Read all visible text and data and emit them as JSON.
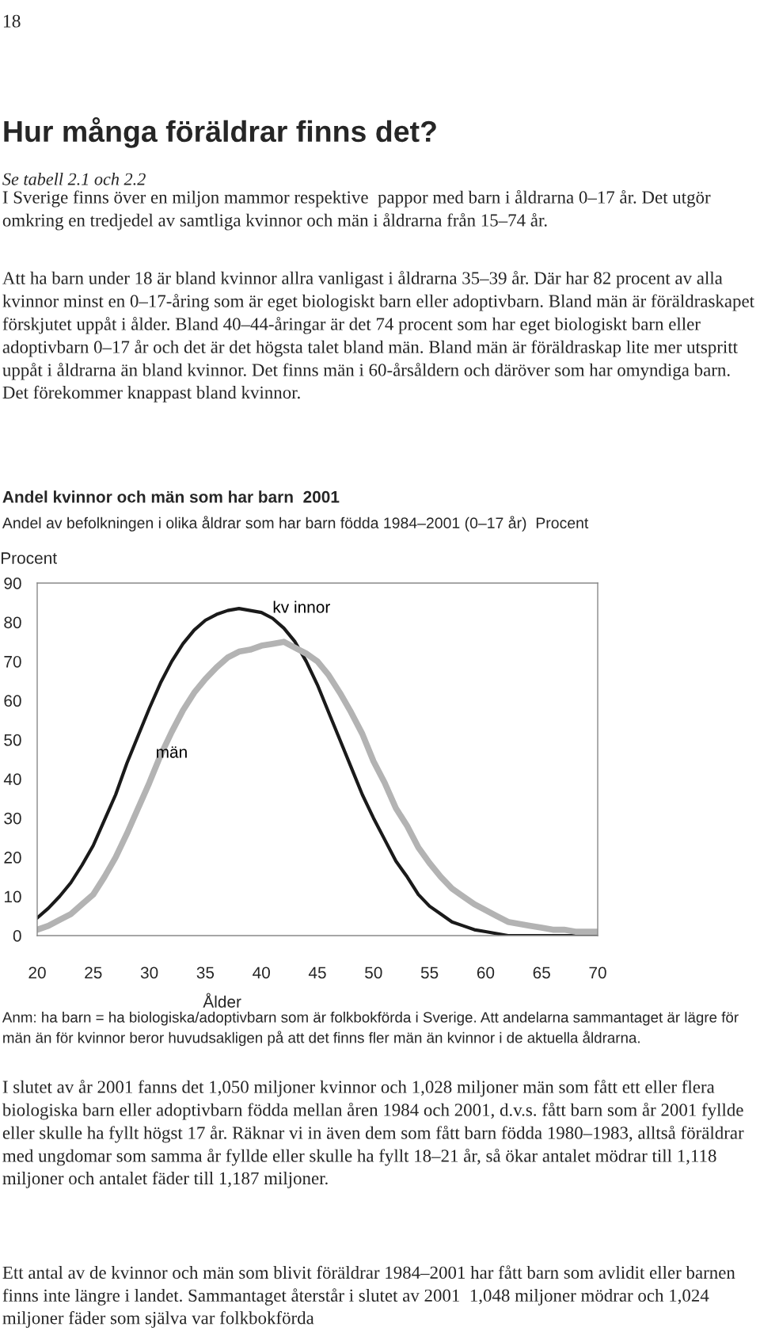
{
  "chart_data": {
    "type": "line",
    "title": "Andel kvinnor och män som har barn  2001",
    "subtitle": "Andel av befolkningen i olika åldrar som har barn födda 1984–2001 (0–17 år)  Procent",
    "ylabel": "Procent",
    "xlabel": "Ålder",
    "annotations": [
      "18",
      "Hur många föräldrar finns det?",
      "Se tabell 2.1 och 2.2",
      "I Sverige finns över en miljon mammor respektive  pappor med barn i åldrarna 0–17 år. Det utgör omkring en tredjedel av samtliga kvinnor och män i åldrarna från 15–74 år.",
      "Att ha barn under 18 är bland kvinnor allra vanligast i åldrarna 35–39 år. Där har 82 procent av alla kvinnor minst en 0–17-åring som är eget biologiskt barn eller adoptivbarn. Bland män är föräldraskapet förskjutet uppåt i ålder. Bland 40–44-åringar är det 74 procent som har eget biologiskt barn eller adoptivbarn 0–17 år och det är det högsta talet bland män. Bland män är föräldraskap lite mer utspritt uppåt i åldrarna än bland kvinnor. Det finns män i 60-årsåldern och däröver som har omyndiga barn. Det förekommer knappast bland kvinnor.",
      "Anm: ha barn = ha biologiska/adoptivbarn som är folkbokförda i Sverige. Att andelarna sammantaget är lägre för män än för kvinnor beror huvudsakligen på att det finns fler män än kvinnor i de aktuella åldrarna.",
      "I slutet av år 2001 fanns det 1,050 miljoner kvinnor och 1,028 miljoner män som fått ett eller flera biologiska barn eller adoptivbarn födda mellan åren 1984 och 2001, d.v.s. fått barn som år 2001 fyllde eller skulle ha fyllt högst 17 år. Räknar vi in även dem som fått barn födda 1980–1983, alltså föräldrar med ungdomar som samma år fyllde eller skulle ha fyllt 18–21 år, så ökar antalet mödrar till 1,118 miljoner och antalet fäder till 1,187 miljoner.",
      "Ett antal av de kvinnor och män som blivit föräldrar 1984–2001 har fått barn som avlidit eller barnen finns inte längre i landet. Sammantaget återstår i slutet av 2001  1,048 miljoner mödrar och 1,024 miljoner fäder som själva var folkbokförda"
    ],
    "x": [
      20,
      21,
      22,
      23,
      24,
      25,
      26,
      27,
      28,
      29,
      30,
      31,
      32,
      33,
      34,
      35,
      36,
      37,
      38,
      39,
      40,
      41,
      42,
      43,
      44,
      45,
      46,
      47,
      48,
      49,
      50,
      51,
      52,
      53,
      54,
      55,
      56,
      57,
      58,
      59,
      60,
      61,
      62,
      63,
      64,
      65,
      66,
      67,
      68,
      69,
      70
    ],
    "series": [
      {
        "name": "kv innor",
        "color": "#1a1a1a",
        "values": [
          4.5,
          7,
          10,
          13.5,
          18,
          23,
          29.5,
          36,
          44,
          51,
          58,
          64.5,
          70,
          74.5,
          78,
          80.5,
          82,
          83,
          83.5,
          83,
          82.5,
          81,
          78.5,
          75,
          70,
          64,
          57,
          50,
          43,
          36,
          30,
          24.5,
          19,
          15,
          10.5,
          7.5,
          5.5,
          3.5,
          2.5,
          1.5,
          1,
          0.5,
          0,
          0,
          0,
          0,
          0,
          0,
          0,
          0,
          0
        ]
      },
      {
        "name": "män",
        "color": "#b3b3b3",
        "values": [
          1.5,
          2.5,
          4,
          5.5,
          8,
          10.5,
          15,
          20,
          26,
          32.5,
          39,
          46,
          52,
          57.5,
          62,
          65.5,
          68.5,
          71,
          72.5,
          73,
          74,
          74.5,
          75,
          73.5,
          72,
          70,
          66.5,
          62,
          57,
          51.5,
          44.5,
          39,
          32.5,
          28,
          22.5,
          18.5,
          15,
          12,
          10,
          8,
          6.5,
          5,
          3.5,
          3,
          2.5,
          2,
          1.5,
          1.5,
          1,
          1,
          1
        ]
      }
    ],
    "xlim": [
      20,
      70
    ],
    "xticks": [
      20,
      25,
      30,
      35,
      40,
      45,
      50,
      55,
      60,
      65,
      70
    ],
    "ylim": [
      0,
      90
    ],
    "yticks": [
      0,
      10,
      20,
      30,
      40,
      50,
      60,
      70,
      80,
      90
    ],
    "grid": false,
    "legend": false,
    "marker": "none",
    "line_style": "solid"
  }
}
